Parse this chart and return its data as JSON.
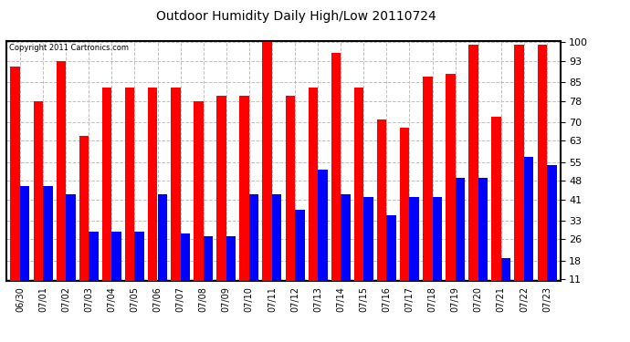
{
  "title": "Outdoor Humidity Daily High/Low 20110724",
  "copyright": "Copyright 2011 Cartronics.com",
  "categories": [
    "06/30",
    "07/01",
    "07/02",
    "07/03",
    "07/04",
    "07/05",
    "07/06",
    "07/07",
    "07/08",
    "07/09",
    "07/10",
    "07/11",
    "07/12",
    "07/13",
    "07/14",
    "07/15",
    "07/16",
    "07/17",
    "07/18",
    "07/19",
    "07/20",
    "07/21",
    "07/22",
    "07/23"
  ],
  "highs": [
    91,
    78,
    93,
    65,
    83,
    83,
    83,
    83,
    78,
    80,
    80,
    100,
    80,
    83,
    96,
    83,
    71,
    68,
    87,
    88,
    99,
    72,
    99,
    99
  ],
  "lows": [
    46,
    46,
    43,
    29,
    29,
    29,
    43,
    28,
    27,
    27,
    43,
    43,
    37,
    52,
    43,
    42,
    35,
    42,
    42,
    49,
    49,
    19,
    57,
    54
  ],
  "high_color": "#FF0000",
  "low_color": "#0000FF",
  "bg_color": "#FFFFFF",
  "plot_bg_color": "#FFFFFF",
  "grid_color": "#C0C0C0",
  "yticks": [
    11,
    18,
    26,
    33,
    41,
    48,
    55,
    63,
    70,
    78,
    85,
    93,
    100
  ],
  "ymin": 11,
  "ymax": 100,
  "bar_width": 0.42
}
